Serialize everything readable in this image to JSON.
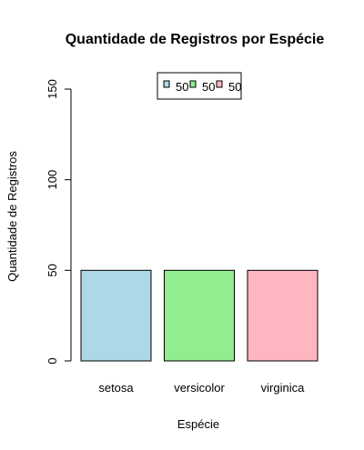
{
  "chart_data": {
    "type": "bar",
    "title": "Quantidade de Registros por Espécie",
    "xlabel": "Espécie",
    "ylabel": "Quantidade de Registros",
    "categories": [
      "setosa",
      "versicolor",
      "virginica"
    ],
    "values": [
      50,
      50,
      50
    ],
    "colors": [
      "#add8e6",
      "#90ee90",
      "#ffb6c1"
    ],
    "ylim": [
      0,
      150
    ],
    "yticks": [
      0,
      50,
      100,
      150
    ],
    "grid": false,
    "legend": {
      "position": "top",
      "entries": [
        "50",
        "50",
        "50"
      ]
    }
  }
}
